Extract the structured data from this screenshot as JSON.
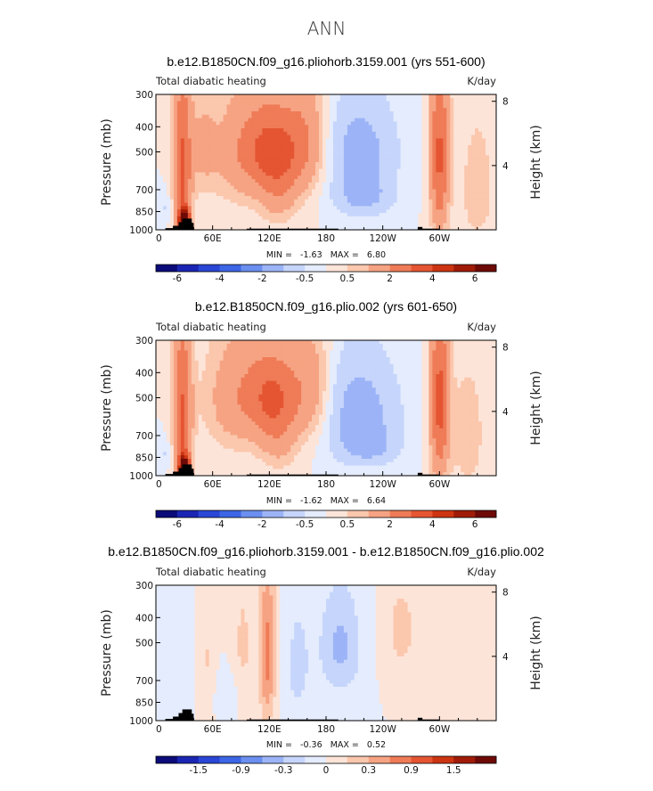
{
  "figure_title": "ANN",
  "chart_data": [
    {
      "type": "heatmap",
      "title": "b.e12.B1850CN.f09_g16.pliohorb.3159.001 (yrs 551-600)",
      "left_label": "Total diabatic heating",
      "right_label": "K/day",
      "ylabel": "Pressure (mb)",
      "y2label": "Height (km)",
      "x_ticks": [
        "0",
        "60E",
        "120E",
        "180",
        "120W",
        "60W"
      ],
      "y_ticks": [
        "300",
        "400",
        "500",
        "700",
        "850",
        "1000"
      ],
      "y2_ticks": [
        "8",
        "4"
      ],
      "min_max_text": "MIN =   -1.63   MAX =   6.80",
      "colorbar_ticks": [
        "-6",
        "-4",
        "-2",
        "-0.5",
        "0.5",
        "2",
        "4",
        "6"
      ],
      "colorbar_colors": [
        "#0b0b7a",
        "#1a26b3",
        "#2a46d6",
        "#3d66e6",
        "#6b8ff0",
        "#9cb4f7",
        "#c6d5fb",
        "#e4ecfd",
        "#fde4d8",
        "#fbc7ad",
        "#f6a383",
        "#ef7b57",
        "#e55532",
        "#cd3512",
        "#a01c08",
        "#6e0a06"
      ],
      "x_range": [
        0,
        360
      ],
      "y_range": [
        300,
        1000
      ],
      "features": [
        {
          "lon": 28,
          "p": 600,
          "amp": 3.2,
          "sx": 7,
          "sp": 330
        },
        {
          "lon": 30,
          "p": 930,
          "amp": 6.8,
          "sx": 4,
          "sp": 70
        },
        {
          "lon": 90,
          "p": 500,
          "amp": 1.6,
          "sx": 22,
          "sp": 190
        },
        {
          "lon": 125,
          "p": 480,
          "amp": 2.7,
          "sx": 20,
          "sp": 140
        },
        {
          "lon": 160,
          "p": 460,
          "amp": 1.8,
          "sx": 16,
          "sp": 170
        },
        {
          "lon": 130,
          "p": 720,
          "amp": 1.3,
          "sx": 15,
          "sp": 160
        },
        {
          "lon": 300,
          "p": 520,
          "amp": 3.2,
          "sx": 7,
          "sp": 330
        },
        {
          "lon": 50,
          "p": 480,
          "amp": 1.0,
          "sx": 10,
          "sp": 150
        },
        {
          "lon": 215,
          "p": 500,
          "amp": -1.6,
          "sx": 28,
          "sp": 170
        },
        {
          "lon": 220,
          "p": 760,
          "amp": -1.1,
          "sx": 22,
          "sp": 90
        },
        {
          "lon": 340,
          "p": 700,
          "amp": 0.8,
          "sx": 14,
          "sp": 300
        },
        {
          "lon": 10,
          "p": 820,
          "amp": -0.6,
          "sx": 7,
          "sp": 80
        }
      ]
    },
    {
      "type": "heatmap",
      "title": "b.e12.B1850CN.f09_g16.plio.002 (yrs 601-650)",
      "left_label": "Total diabatic heating",
      "right_label": "K/day",
      "ylabel": "Pressure (mb)",
      "y2label": "Height (km)",
      "x_ticks": [
        "0",
        "60E",
        "120E",
        "180",
        "120W",
        "60W"
      ],
      "y_ticks": [
        "300",
        "400",
        "500",
        "700",
        "850",
        "1000"
      ],
      "y2_ticks": [
        "8",
        "4"
      ],
      "min_max_text": "MIN =   -1.62   MAX =   6.64",
      "colorbar_ticks": [
        "-6",
        "-4",
        "-2",
        "-0.5",
        "0.5",
        "2",
        "4",
        "6"
      ],
      "colorbar_colors": [
        "#0b0b7a",
        "#1a26b3",
        "#2a46d6",
        "#3d66e6",
        "#6b8ff0",
        "#9cb4f7",
        "#c6d5fb",
        "#e4ecfd",
        "#fde4d8",
        "#fbc7ad",
        "#f6a383",
        "#ef7b57",
        "#e55532",
        "#cd3512",
        "#a01c08",
        "#6e0a06"
      ],
      "x_range": [
        0,
        360
      ],
      "y_range": [
        300,
        1000
      ],
      "features": [
        {
          "lon": 28,
          "p": 600,
          "amp": 3.1,
          "sx": 7,
          "sp": 330
        },
        {
          "lon": 30,
          "p": 930,
          "amp": 6.6,
          "sx": 4,
          "sp": 70
        },
        {
          "lon": 85,
          "p": 500,
          "amp": 1.6,
          "sx": 24,
          "sp": 190
        },
        {
          "lon": 125,
          "p": 480,
          "amp": 2.5,
          "sx": 20,
          "sp": 140
        },
        {
          "lon": 165,
          "p": 460,
          "amp": 1.6,
          "sx": 15,
          "sp": 170
        },
        {
          "lon": 130,
          "p": 720,
          "amp": 1.2,
          "sx": 15,
          "sp": 160
        },
        {
          "lon": 300,
          "p": 520,
          "amp": 3.3,
          "sx": 7,
          "sp": 330
        },
        {
          "lon": 215,
          "p": 560,
          "amp": -1.6,
          "sx": 30,
          "sp": 190
        },
        {
          "lon": 225,
          "p": 780,
          "amp": -1.0,
          "sx": 22,
          "sp": 90
        },
        {
          "lon": 330,
          "p": 700,
          "amp": 0.8,
          "sx": 14,
          "sp": 300
        },
        {
          "lon": 10,
          "p": 820,
          "amp": -0.6,
          "sx": 7,
          "sp": 80
        }
      ]
    },
    {
      "type": "heatmap",
      "title": "b.e12.B1850CN.f09_g16.pliohorb.3159.001 - b.e12.B1850CN.f09_g16.plio.002",
      "left_label": "Total diabatic heating",
      "right_label": "K/day",
      "ylabel": "Pressure (mb)",
      "y2label": "Height (km)",
      "x_ticks": [
        "0",
        "60E",
        "120E",
        "180",
        "120W",
        "60W"
      ],
      "y_ticks": [
        "300",
        "400",
        "500",
        "700",
        "850",
        "1000"
      ],
      "y2_ticks": [
        "8",
        "4"
      ],
      "min_max_text": "MIN =   -0.36   MAX =   0.52",
      "colorbar_ticks": [
        "-1.5",
        "-0.9",
        "-0.3",
        "0",
        "0.3",
        "0.9",
        "1.5"
      ],
      "colorbar_colors": [
        "#0b0b7a",
        "#1a26b3",
        "#2a46d6",
        "#3d66e6",
        "#6b8ff0",
        "#9cb4f7",
        "#c6d5fb",
        "#e4ecfd",
        "#fde4d8",
        "#fbc7ad",
        "#f6a383",
        "#ef7b57",
        "#e55532",
        "#cd3512",
        "#a01c08",
        "#6e0a06"
      ],
      "x_range": [
        0,
        360
      ],
      "y_range": [
        300,
        1000
      ],
      "features": [
        {
          "lon": 118,
          "p": 560,
          "amp": 0.5,
          "sx": 6,
          "sp": 300
        },
        {
          "lon": 92,
          "p": 520,
          "amp": 0.18,
          "sx": 8,
          "sp": 250
        },
        {
          "lon": 195,
          "p": 520,
          "amp": -0.34,
          "sx": 16,
          "sp": 180
        },
        {
          "lon": 260,
          "p": 450,
          "amp": 0.2,
          "sx": 14,
          "sp": 150
        },
        {
          "lon": 55,
          "p": 600,
          "amp": 0.16,
          "sx": 6,
          "sp": 250
        },
        {
          "lon": 22,
          "p": 700,
          "amp": -0.15,
          "sx": 8,
          "sp": 220
        },
        {
          "lon": 150,
          "p": 620,
          "amp": -0.2,
          "sx": 10,
          "sp": 260
        },
        {
          "lon": 300,
          "p": 620,
          "amp": 0.15,
          "sx": 6,
          "sp": 250
        },
        {
          "lon": 330,
          "p": 500,
          "amp": 0.12,
          "sx": 10,
          "sp": 200
        },
        {
          "lon": 75,
          "p": 800,
          "amp": -0.12,
          "sx": 12,
          "sp": 120
        }
      ]
    }
  ]
}
